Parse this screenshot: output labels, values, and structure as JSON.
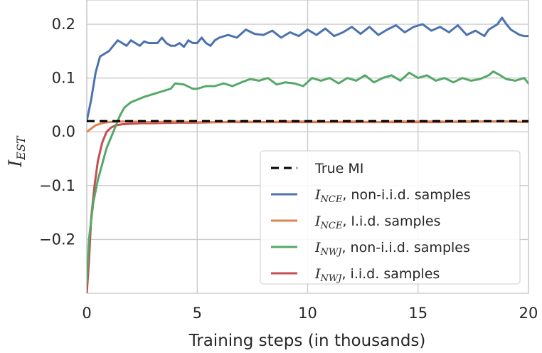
{
  "chart_data": {
    "type": "line",
    "xlabel": "Training steps (in thousands)",
    "ylabel": {
      "main": "I",
      "sub": "EST"
    },
    "xlim": [
      0,
      20
    ],
    "ylim": [
      -0.3,
      0.245
    ],
    "xticks": [
      0,
      5,
      10,
      15,
      20
    ],
    "xtick_labels": [
      "0",
      "5",
      "10",
      "15",
      "20"
    ],
    "yticks": [
      0.2,
      0.1,
      0.0,
      -0.1,
      -0.2
    ],
    "ytick_labels": [
      "0.2",
      "0.1",
      "0.0",
      "−0.1",
      "−0.2"
    ],
    "grid": true,
    "legend_position": "lower-right",
    "true_mi": 0.02,
    "series": [
      {
        "name": "True MI",
        "label_main": "True MI",
        "label_sub": "",
        "label_rest": "",
        "style": "dashed",
        "color": "#000000",
        "x": [
          0,
          20
        ],
        "y": [
          0.02,
          0.02
        ]
      },
      {
        "name": "I_NCE, non-i.i.d. samples",
        "label_main": "I",
        "label_sub": "NCE",
        "label_rest": ", non-i.i.d. samples",
        "style": "solid",
        "color": "#4c72b0",
        "x": [
          0,
          0.2,
          0.4,
          0.6,
          0.8,
          1.0,
          1.2,
          1.4,
          1.6,
          1.8,
          2.0,
          2.2,
          2.4,
          2.6,
          2.8,
          3.0,
          3.2,
          3.4,
          3.6,
          3.8,
          4.0,
          4.2,
          4.4,
          4.6,
          4.8,
          5.0,
          5.2,
          5.4,
          5.6,
          5.8,
          6.0,
          6.4,
          6.8,
          7.2,
          7.6,
          8.0,
          8.4,
          8.8,
          9.2,
          9.6,
          10.0,
          10.4,
          10.8,
          11.2,
          11.6,
          12.0,
          12.4,
          12.8,
          13.2,
          13.6,
          14.0,
          14.4,
          14.8,
          15.2,
          15.6,
          16.0,
          16.4,
          16.8,
          17.2,
          17.6,
          18.0,
          18.2,
          18.4,
          18.6,
          18.8,
          19.0,
          19.2,
          19.4,
          19.6,
          19.8,
          20.0
        ],
        "y": [
          0.02,
          0.06,
          0.11,
          0.14,
          0.145,
          0.15,
          0.16,
          0.17,
          0.165,
          0.16,
          0.17,
          0.165,
          0.16,
          0.168,
          0.165,
          0.165,
          0.165,
          0.175,
          0.165,
          0.16,
          0.16,
          0.165,
          0.158,
          0.17,
          0.165,
          0.165,
          0.175,
          0.165,
          0.16,
          0.17,
          0.175,
          0.18,
          0.175,
          0.19,
          0.182,
          0.18,
          0.188,
          0.175,
          0.185,
          0.178,
          0.19,
          0.18,
          0.192,
          0.178,
          0.185,
          0.195,
          0.182,
          0.195,
          0.18,
          0.19,
          0.198,
          0.185,
          0.195,
          0.2,
          0.188,
          0.195,
          0.185,
          0.198,
          0.18,
          0.188,
          0.178,
          0.19,
          0.195,
          0.2,
          0.212,
          0.2,
          0.19,
          0.185,
          0.18,
          0.178,
          0.178
        ]
      },
      {
        "name": "I_NCE, I.i.d. samples",
        "label_main": "I",
        "label_sub": "NCE",
        "label_rest": ", I.i.d. samples",
        "style": "solid",
        "color": "#dd8452",
        "x": [
          0,
          0.2,
          0.4,
          0.6,
          0.8,
          1.0,
          1.5,
          2.0,
          3.0,
          4.0,
          5.0,
          6.0,
          7.0,
          8.0,
          9.0,
          10.0,
          11.0,
          12.0,
          13.0,
          14.0,
          15.0,
          16.0,
          17.0,
          18.0,
          19.0,
          20.0
        ],
        "y": [
          0.0,
          0.006,
          0.012,
          0.015,
          0.017,
          0.018,
          0.019,
          0.019,
          0.018,
          0.019,
          0.018,
          0.018,
          0.019,
          0.018,
          0.019,
          0.019,
          0.018,
          0.019,
          0.018,
          0.019,
          0.019,
          0.019,
          0.018,
          0.019,
          0.019,
          0.018
        ]
      },
      {
        "name": "I_NWJ, non-i.i.d. samples",
        "label_main": "I",
        "label_sub": "NWJ",
        "label_rest": ", non-i.i.d. samples",
        "style": "solid",
        "color": "#55a868",
        "x": [
          0,
          0.1,
          0.3,
          0.5,
          0.7,
          0.9,
          1.1,
          1.3,
          1.5,
          1.7,
          2.0,
          2.3,
          2.6,
          3.0,
          3.4,
          3.8,
          4.0,
          4.4,
          4.8,
          5.0,
          5.4,
          5.8,
          6.2,
          6.6,
          7.0,
          7.4,
          7.8,
          8.2,
          8.6,
          9.0,
          9.4,
          9.8,
          10.2,
          10.6,
          11.0,
          11.4,
          11.8,
          12.2,
          12.6,
          13.0,
          13.4,
          13.8,
          14.2,
          14.6,
          15.0,
          15.4,
          15.8,
          16.2,
          16.6,
          17.0,
          17.4,
          17.8,
          18.2,
          18.4,
          18.6,
          19.0,
          19.4,
          19.8,
          20.0
        ],
        "y": [
          -0.28,
          -0.2,
          -0.13,
          -0.09,
          -0.06,
          -0.03,
          -0.01,
          0.01,
          0.03,
          0.045,
          0.055,
          0.06,
          0.065,
          0.07,
          0.075,
          0.08,
          0.09,
          0.088,
          0.08,
          0.08,
          0.085,
          0.085,
          0.09,
          0.085,
          0.092,
          0.098,
          0.095,
          0.1,
          0.088,
          0.092,
          0.09,
          0.085,
          0.1,
          0.095,
          0.1,
          0.09,
          0.1,
          0.095,
          0.105,
          0.092,
          0.1,
          0.105,
          0.095,
          0.11,
          0.1,
          0.105,
          0.095,
          0.1,
          0.092,
          0.1,
          0.095,
          0.098,
          0.105,
          0.112,
          0.108,
          0.098,
          0.095,
          0.1,
          0.09
        ]
      },
      {
        "name": "I_NWJ, i.i.d. samples",
        "label_main": "I",
        "label_sub": "NWJ",
        "label_rest": ", i.i.d. samples",
        "style": "solid",
        "color": "#c44e52",
        "x": [
          0,
          0.1,
          0.2,
          0.35,
          0.5,
          0.7,
          0.9,
          1.1,
          1.3,
          1.6,
          2.0,
          2.5,
          3.0,
          4.0,
          5.0,
          6.0,
          7.0,
          8.0,
          9.0,
          10.0,
          11.0,
          12.0,
          13.0,
          14.0,
          15.0,
          16.0,
          17.0,
          18.0,
          19.0,
          20.0
        ],
        "y": [
          -0.3,
          -0.24,
          -0.16,
          -0.1,
          -0.055,
          -0.02,
          0.0,
          0.008,
          0.012,
          0.014,
          0.015,
          0.016,
          0.016,
          0.017,
          0.017,
          0.018,
          0.018,
          0.018,
          0.018,
          0.018,
          0.018,
          0.018,
          0.018,
          0.018,
          0.018,
          0.018,
          0.019,
          0.019,
          0.019,
          0.018
        ]
      }
    ]
  }
}
